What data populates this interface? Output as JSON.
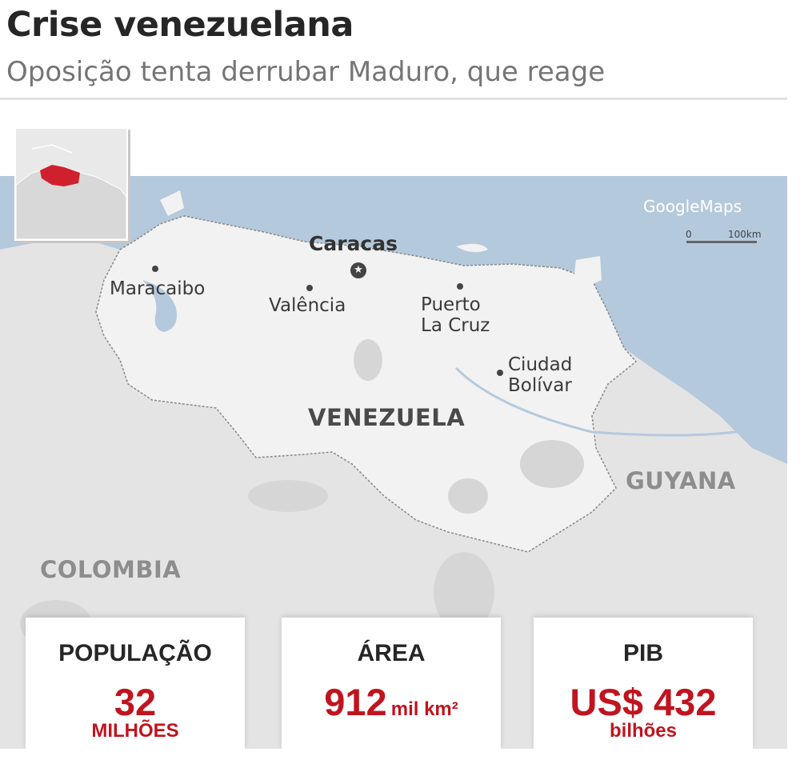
{
  "header": {
    "title": "Crise venezuelana",
    "subtitle": "Oposição tenta derrubar Maduro, que reage"
  },
  "map": {
    "credit": "GoogleMaps",
    "scale": {
      "start": "0",
      "end": "100km"
    },
    "capital": "Caracas",
    "cities": {
      "maracaibo": "Maracaibo",
      "valencia": "Valência",
      "puerto_la_cruz_1": "Puerto",
      "puerto_la_cruz_2": "La Cruz",
      "ciudad_bolivar_1": "Ciudad",
      "ciudad_bolivar_2": "Bolívar"
    },
    "countries": {
      "venezuela": "VENEZUELA",
      "guyana": "GUYANA",
      "colombia": "COLOMBIA"
    },
    "colors": {
      "sea": "#b5c9dc",
      "venezuela": "#f2f2f2",
      "neighbors": "#e4e4e4",
      "highlight": "#d0202e",
      "accent": "#c0141f"
    },
    "icons": {
      "capital": "star-in-circle-icon",
      "city": "dot-icon"
    }
  },
  "stats": {
    "population": {
      "label": "POPULAÇÃO",
      "value": "32",
      "unit": "MILHÕES"
    },
    "area": {
      "label": "ÁREA",
      "value": "912",
      "unit": "mil km²"
    },
    "gdp": {
      "label": "PIB",
      "value": "US$ 432",
      "unit": "bilhões"
    }
  }
}
